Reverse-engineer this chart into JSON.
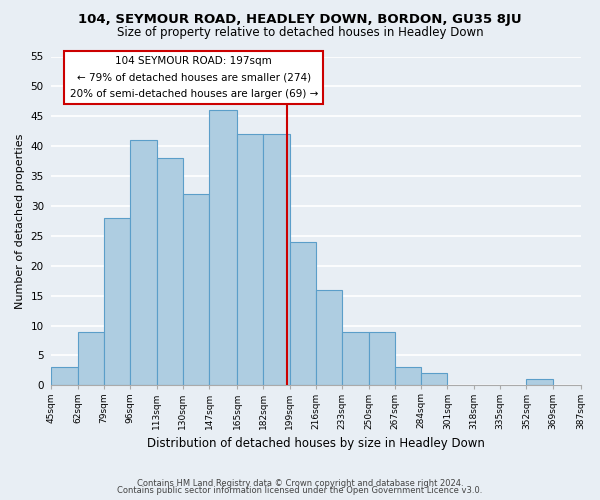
{
  "title": "104, SEYMOUR ROAD, HEADLEY DOWN, BORDON, GU35 8JU",
  "subtitle": "Size of property relative to detached houses in Headley Down",
  "xlabel": "Distribution of detached houses by size in Headley Down",
  "ylabel": "Number of detached properties",
  "bin_edges": [
    45,
    62,
    79,
    96,
    113,
    130,
    147,
    165,
    182,
    199,
    216,
    233,
    250,
    267,
    284,
    301,
    318,
    335,
    352,
    369,
    387
  ],
  "bin_labels": [
    "45sqm",
    "62sqm",
    "79sqm",
    "96sqm",
    "113sqm",
    "130sqm",
    "147sqm",
    "165sqm",
    "182sqm",
    "199sqm",
    "216sqm",
    "233sqm",
    "250sqm",
    "267sqm",
    "284sqm",
    "301sqm",
    "318sqm",
    "335sqm",
    "352sqm",
    "369sqm",
    "387sqm"
  ],
  "counts": [
    3,
    9,
    28,
    41,
    38,
    32,
    46,
    42,
    42,
    24,
    16,
    9,
    9,
    3,
    2,
    0,
    0,
    0,
    1,
    0
  ],
  "bar_color": "#aecde1",
  "bar_edge_color": "#5b9ec9",
  "property_size": 197,
  "vline_color": "#cc0000",
  "annotation_box_edge": "#cc0000",
  "annotation_line1": "104 SEYMOUR ROAD: 197sqm",
  "annotation_line2": "← 79% of detached houses are smaller (274)",
  "annotation_line3": "20% of semi-detached houses are larger (69) →",
  "ylim": [
    0,
    55
  ],
  "yticks": [
    0,
    5,
    10,
    15,
    20,
    25,
    30,
    35,
    40,
    45,
    50,
    55
  ],
  "footer1": "Contains HM Land Registry data © Crown copyright and database right 2024.",
  "footer2": "Contains public sector information licensed under the Open Government Licence v3.0.",
  "background_color": "#e8eef4",
  "grid_color": "#ffffff"
}
